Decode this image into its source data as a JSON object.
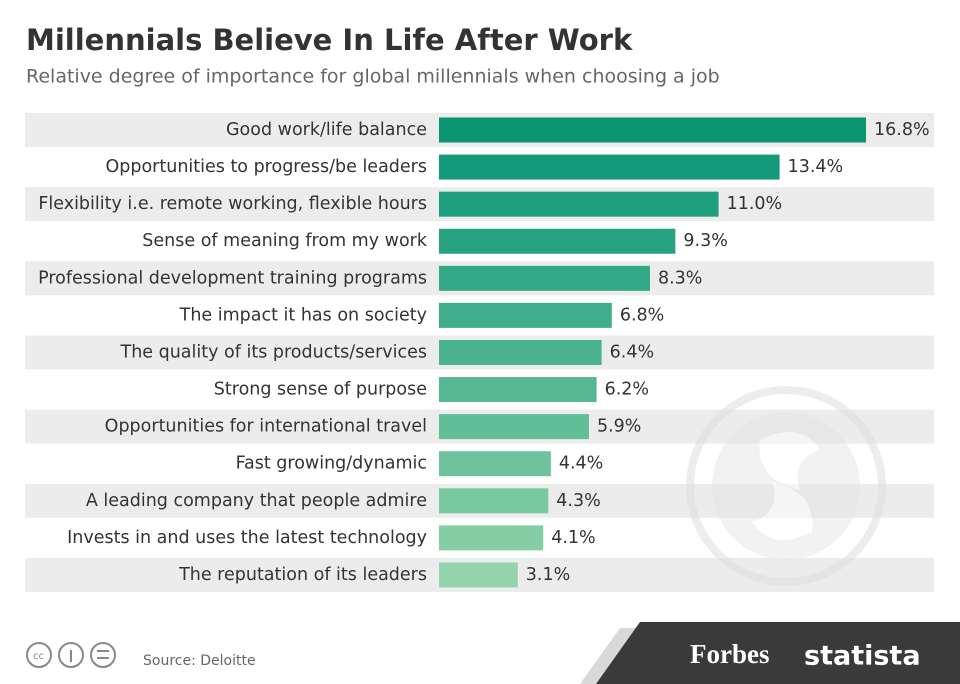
{
  "chart_data": {
    "type": "bar",
    "orientation": "horizontal",
    "title": "Millennials Believe In Life After Work",
    "subtitle": "Relative degree of importance for global millennials when choosing a job",
    "categories": [
      "Good work/life balance",
      "Opportunities to progress/be leaders",
      "Flexibility i.e. remote working, flexible hours",
      "Sense of meaning from my work",
      "Professional development training programs",
      "The impact it has on society",
      "The quality of its products/services",
      "Strong sense of purpose",
      "Opportunities for international travel",
      "Fast growing/dynamic",
      "A leading company that people admire",
      "Invests in and uses the latest technology",
      "The reputation of its leaders"
    ],
    "values": [
      16.8,
      13.4,
      11.0,
      9.3,
      8.3,
      6.8,
      6.4,
      6.2,
      5.9,
      4.4,
      4.3,
      4.1,
      3.1
    ],
    "value_labels": [
      "16.8%",
      "13.4%",
      "11.0%",
      "9.3%",
      "8.3%",
      "6.8%",
      "6.4%",
      "6.2%",
      "5.9%",
      "4.4%",
      "4.3%",
      "4.1%",
      "3.1%"
    ],
    "colors": [
      "#0a9470",
      "#14997a",
      "#1d9e7d",
      "#27a381",
      "#33a886",
      "#3fae8a",
      "#4ab38e",
      "#55b892",
      "#62be97",
      "#6ec39c",
      "#79c8a0",
      "#85cda5",
      "#93d4ac"
    ],
    "source": "Source: Deloitte",
    "brands": [
      "Forbes",
      "statista"
    ]
  }
}
